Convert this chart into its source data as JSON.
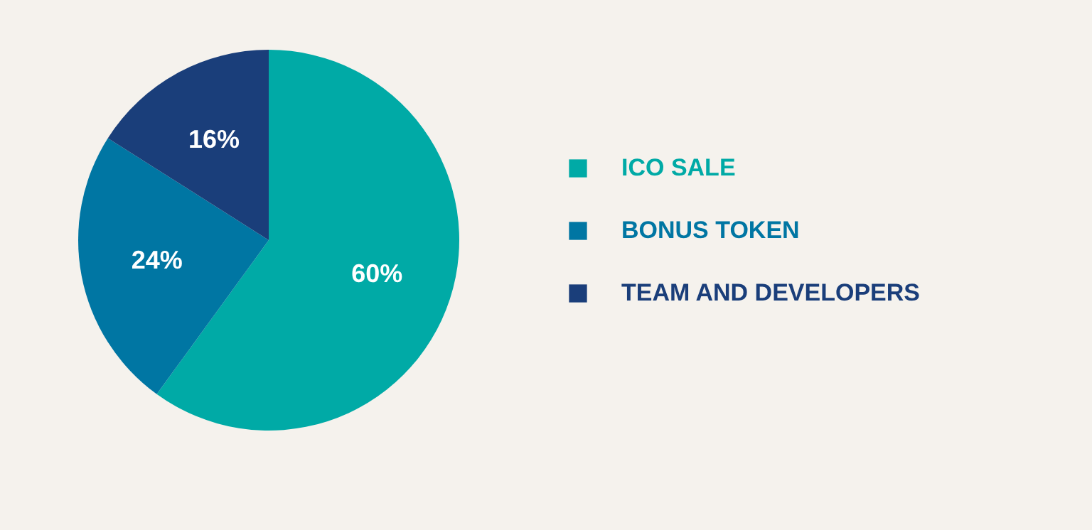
{
  "chart_data": {
    "type": "pie",
    "categories": [
      "ICO SALE",
      "BONUS TOKEN",
      "TEAM AND DEVELOPERS"
    ],
    "values": [
      60,
      24,
      16
    ],
    "colors": [
      "#00aaa6",
      "#0076a3",
      "#1a3e7a"
    ],
    "value_labels": [
      "60%",
      "24%",
      "16%"
    ],
    "legend": "right"
  }
}
